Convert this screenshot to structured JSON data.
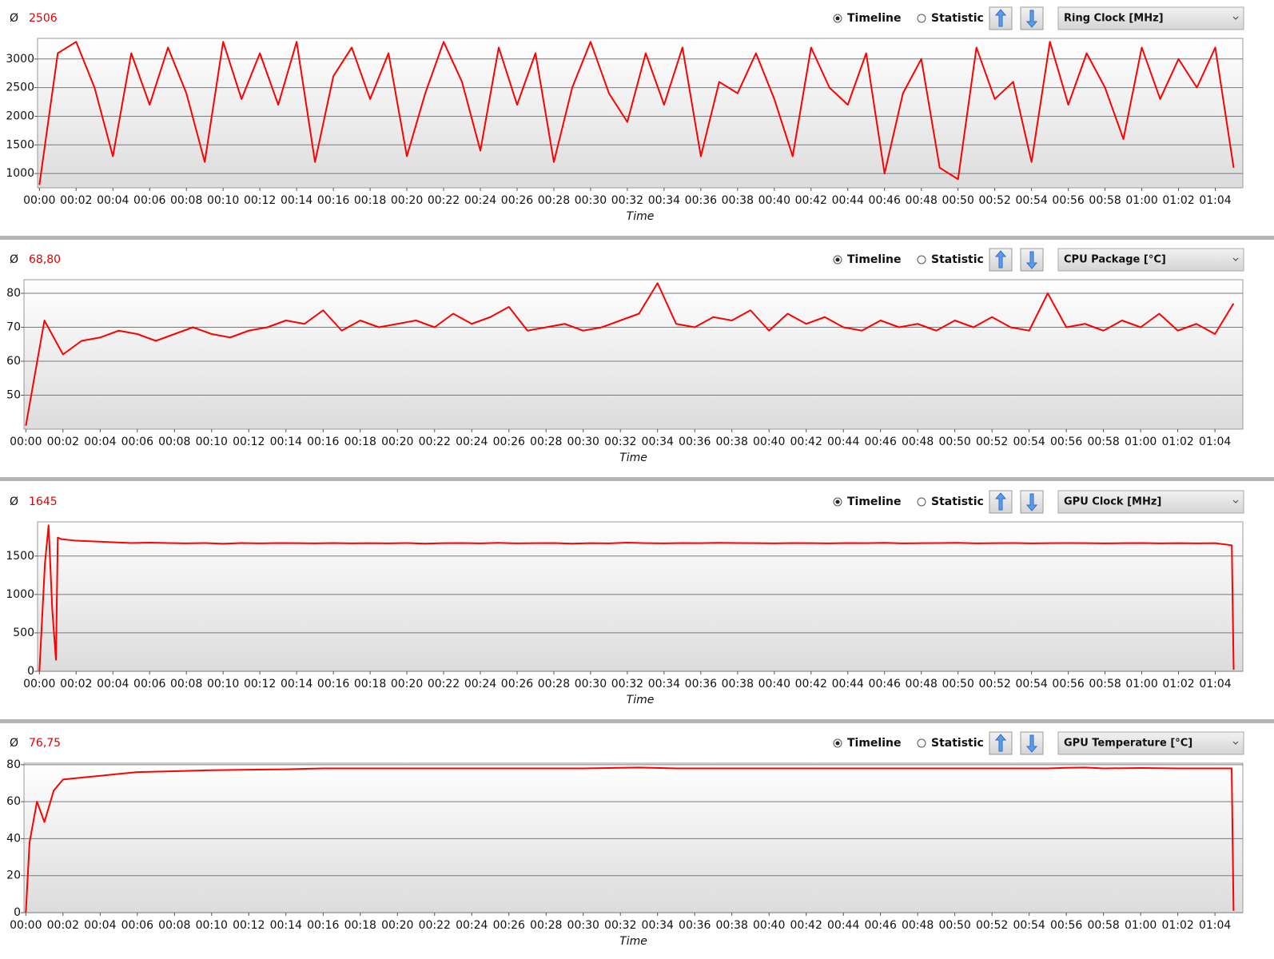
{
  "chart_data": [
    {
      "type": "line",
      "average_symbol": "Ø",
      "average": "2506",
      "view_options": [
        "Timeline",
        "Statistic"
      ],
      "selected_view": "Timeline",
      "x_label": "Time",
      "grid": true,
      "x": [
        0,
        1,
        2,
        3,
        4,
        5,
        6,
        7,
        8,
        9,
        10,
        11,
        12,
        13,
        14,
        15,
        16,
        17,
        18,
        19,
        20,
        21,
        22,
        23,
        24,
        25,
        26,
        27,
        28,
        29,
        30,
        31,
        32,
        33,
        34,
        35,
        36,
        37,
        38,
        39,
        40,
        41,
        42,
        43,
        44,
        45,
        46,
        47,
        48,
        49,
        50,
        51,
        52,
        53,
        54,
        55,
        56,
        57,
        58,
        59,
        60,
        61,
        62,
        63,
        64,
        65
      ],
      "series": [
        {
          "name": "Ring Clock [MHz]",
          "color": "#ff0000",
          "values": [
            800,
            3100,
            3300,
            2500,
            1300,
            3100,
            2200,
            3200,
            2400,
            1200,
            3300,
            2300,
            3100,
            2200,
            3300,
            1200,
            2700,
            3200,
            2300,
            3100,
            1300,
            2400,
            3300,
            2600,
            1400,
            3200,
            2200,
            3100,
            1200,
            2500,
            3300,
            2400,
            1900,
            3100,
            2200,
            3200,
            1300,
            2600,
            2400,
            3100,
            2300,
            1300,
            3200,
            2500,
            2200,
            3100,
            1000,
            2400,
            3000,
            1100,
            900,
            3200,
            2300,
            2600,
            1200,
            3300,
            2200,
            3100,
            2500,
            1600,
            3200,
            2300,
            3000,
            2500,
            3200,
            1100
          ]
        }
      ],
      "xlim": [
        -0.1,
        65.5
      ],
      "ylim": [
        750,
        3360
      ],
      "yticks": [
        1000,
        1500,
        2000,
        2500,
        3000
      ],
      "xticks": [
        {
          "value": 0,
          "label": "00:00"
        },
        {
          "value": 2,
          "label": "00:02"
        },
        {
          "value": 4,
          "label": "00:04"
        },
        {
          "value": 6,
          "label": "00:06"
        },
        {
          "value": 8,
          "label": "00:08"
        },
        {
          "value": 10,
          "label": "00:10"
        },
        {
          "value": 12,
          "label": "00:12"
        },
        {
          "value": 14,
          "label": "00:14"
        },
        {
          "value": 16,
          "label": "00:16"
        },
        {
          "value": 18,
          "label": "00:18"
        },
        {
          "value": 20,
          "label": "00:20"
        },
        {
          "value": 22,
          "label": "00:22"
        },
        {
          "value": 24,
          "label": "00:24"
        },
        {
          "value": 26,
          "label": "00:26"
        },
        {
          "value": 28,
          "label": "00:28"
        },
        {
          "value": 30,
          "label": "00:30"
        },
        {
          "value": 32,
          "label": "00:32"
        },
        {
          "value": 34,
          "label": "00:34"
        },
        {
          "value": 36,
          "label": "00:36"
        },
        {
          "value": 38,
          "label": "00:38"
        },
        {
          "value": 40,
          "label": "00:40"
        },
        {
          "value": 42,
          "label": "00:42"
        },
        {
          "value": 44,
          "label": "00:44"
        },
        {
          "value": 46,
          "label": "00:46"
        },
        {
          "value": 48,
          "label": "00:48"
        },
        {
          "value": 50,
          "label": "00:50"
        },
        {
          "value": 52,
          "label": "00:52"
        },
        {
          "value": 54,
          "label": "00:54"
        },
        {
          "value": 56,
          "label": "00:56"
        },
        {
          "value": 58,
          "label": "00:58"
        },
        {
          "value": 60,
          "label": "01:00"
        },
        {
          "value": 62,
          "label": "01:02"
        },
        {
          "value": 64,
          "label": "01:04"
        }
      ]
    },
    {
      "type": "line",
      "average_symbol": "Ø",
      "average": "68,80",
      "view_options": [
        "Timeline",
        "Statistic"
      ],
      "selected_view": "Timeline",
      "x_label": "Time",
      "grid": true,
      "x": [
        0,
        1,
        2,
        3,
        4,
        5,
        6,
        7,
        8,
        9,
        10,
        11,
        12,
        13,
        14,
        15,
        16,
        17,
        18,
        19,
        20,
        21,
        22,
        23,
        24,
        25,
        26,
        27,
        28,
        29,
        30,
        31,
        32,
        33,
        34,
        35,
        36,
        37,
        38,
        39,
        40,
        41,
        42,
        43,
        44,
        45,
        46,
        47,
        48,
        49,
        50,
        51,
        52,
        53,
        54,
        55,
        56,
        57,
        58,
        59,
        60,
        61,
        62,
        63,
        64,
        65
      ],
      "series": [
        {
          "name": "CPU Package [°C]",
          "color": "#ff0000",
          "values": [
            41,
            72,
            62,
            66,
            67,
            69,
            68,
            66,
            68,
            70,
            68,
            67,
            69,
            70,
            72,
            71,
            75,
            69,
            72,
            70,
            71,
            72,
            70,
            74,
            71,
            73,
            76,
            69,
            70,
            71,
            69,
            70,
            72,
            74,
            83,
            71,
            70,
            73,
            72,
            75,
            69,
            74,
            71,
            73,
            70,
            69,
            72,
            70,
            71,
            69,
            72,
            70,
            73,
            70,
            69,
            80,
            70,
            71,
            69,
            72,
            70,
            74,
            69,
            71,
            68,
            77
          ]
        }
      ],
      "xlim": [
        -0.1,
        65.5
      ],
      "ylim": [
        40,
        84
      ],
      "yticks": [
        50,
        60,
        70,
        80
      ],
      "xticks": [
        {
          "value": 0,
          "label": "00:00"
        },
        {
          "value": 2,
          "label": "00:02"
        },
        {
          "value": 4,
          "label": "00:04"
        },
        {
          "value": 6,
          "label": "00:06"
        },
        {
          "value": 8,
          "label": "00:08"
        },
        {
          "value": 10,
          "label": "00:10"
        },
        {
          "value": 12,
          "label": "00:12"
        },
        {
          "value": 14,
          "label": "00:14"
        },
        {
          "value": 16,
          "label": "00:16"
        },
        {
          "value": 18,
          "label": "00:18"
        },
        {
          "value": 20,
          "label": "00:20"
        },
        {
          "value": 22,
          "label": "00:22"
        },
        {
          "value": 24,
          "label": "00:24"
        },
        {
          "value": 26,
          "label": "00:26"
        },
        {
          "value": 28,
          "label": "00:28"
        },
        {
          "value": 30,
          "label": "00:30"
        },
        {
          "value": 32,
          "label": "00:32"
        },
        {
          "value": 34,
          "label": "00:34"
        },
        {
          "value": 36,
          "label": "00:36"
        },
        {
          "value": 38,
          "label": "00:38"
        },
        {
          "value": 40,
          "label": "00:40"
        },
        {
          "value": 42,
          "label": "00:42"
        },
        {
          "value": 44,
          "label": "00:44"
        },
        {
          "value": 46,
          "label": "00:46"
        },
        {
          "value": 48,
          "label": "00:48"
        },
        {
          "value": 50,
          "label": "00:50"
        },
        {
          "value": 52,
          "label": "00:52"
        },
        {
          "value": 54,
          "label": "00:54"
        },
        {
          "value": 56,
          "label": "00:56"
        },
        {
          "value": 58,
          "label": "00:58"
        },
        {
          "value": 60,
          "label": "01:00"
        },
        {
          "value": 62,
          "label": "01:02"
        },
        {
          "value": 64,
          "label": "01:04"
        }
      ]
    },
    {
      "type": "line",
      "average_symbol": "Ø",
      "average": "1645",
      "view_options": [
        "Timeline",
        "Statistic"
      ],
      "selected_view": "Timeline",
      "x_label": "Time",
      "grid": true,
      "x": [
        0,
        0.3,
        0.5,
        0.7,
        0.9,
        1,
        1.2,
        2,
        3,
        4,
        5,
        6,
        7,
        8,
        9,
        10,
        11,
        12,
        13,
        14,
        15,
        16,
        17,
        18,
        19,
        20,
        21,
        22,
        23,
        24,
        25,
        26,
        27,
        28,
        29,
        30,
        31,
        32,
        33,
        34,
        35,
        36,
        37,
        38,
        39,
        40,
        41,
        42,
        43,
        44,
        45,
        46,
        47,
        48,
        49,
        50,
        51,
        52,
        53,
        54,
        55,
        56,
        57,
        58,
        59,
        60,
        61,
        62,
        63,
        64,
        64.9,
        65
      ],
      "series": [
        {
          "name": "GPU Clock [MHz]",
          "color": "#ff0000",
          "values": [
            0,
            1400,
            1900,
            800,
            150,
            1740,
            1720,
            1700,
            1690,
            1680,
            1670,
            1675,
            1670,
            1665,
            1670,
            1660,
            1670,
            1665,
            1670,
            1668,
            1665,
            1670,
            1665,
            1668,
            1665,
            1670,
            1662,
            1668,
            1670,
            1665,
            1672,
            1665,
            1668,
            1670,
            1662,
            1668,
            1665,
            1675,
            1668,
            1665,
            1670,
            1668,
            1672,
            1670,
            1668,
            1665,
            1670,
            1668,
            1665,
            1670,
            1668,
            1672,
            1665,
            1668,
            1670,
            1672,
            1665,
            1668,
            1670,
            1665,
            1668,
            1670,
            1668,
            1665,
            1668,
            1670,
            1665,
            1668,
            1665,
            1668,
            1640,
            20
          ]
        }
      ],
      "xlim": [
        -0.1,
        65.5
      ],
      "ylim": [
        0,
        1945
      ],
      "yticks": [
        0,
        500,
        1000,
        1500
      ],
      "xticks": [
        {
          "value": 0,
          "label": "00:00"
        },
        {
          "value": 2,
          "label": "00:02"
        },
        {
          "value": 4,
          "label": "00:04"
        },
        {
          "value": 6,
          "label": "00:06"
        },
        {
          "value": 8,
          "label": "00:08"
        },
        {
          "value": 10,
          "label": "00:10"
        },
        {
          "value": 12,
          "label": "00:12"
        },
        {
          "value": 14,
          "label": "00:14"
        },
        {
          "value": 16,
          "label": "00:16"
        },
        {
          "value": 18,
          "label": "00:18"
        },
        {
          "value": 20,
          "label": "00:20"
        },
        {
          "value": 22,
          "label": "00:22"
        },
        {
          "value": 24,
          "label": "00:24"
        },
        {
          "value": 26,
          "label": "00:26"
        },
        {
          "value": 28,
          "label": "00:28"
        },
        {
          "value": 30,
          "label": "00:30"
        },
        {
          "value": 32,
          "label": "00:32"
        },
        {
          "value": 34,
          "label": "00:34"
        },
        {
          "value": 36,
          "label": "00:36"
        },
        {
          "value": 38,
          "label": "00:38"
        },
        {
          "value": 40,
          "label": "00:40"
        },
        {
          "value": 42,
          "label": "00:42"
        },
        {
          "value": 44,
          "label": "00:44"
        },
        {
          "value": 46,
          "label": "00:46"
        },
        {
          "value": 48,
          "label": "00:48"
        },
        {
          "value": 50,
          "label": "00:50"
        },
        {
          "value": 52,
          "label": "00:52"
        },
        {
          "value": 54,
          "label": "00:54"
        },
        {
          "value": 56,
          "label": "00:56"
        },
        {
          "value": 58,
          "label": "00:58"
        },
        {
          "value": 60,
          "label": "01:00"
        },
        {
          "value": 62,
          "label": "01:02"
        },
        {
          "value": 64,
          "label": "01:04"
        }
      ]
    },
    {
      "type": "line",
      "average_symbol": "Ø",
      "average": "76,75",
      "view_options": [
        "Timeline",
        "Statistic"
      ],
      "selected_view": "Timeline",
      "x_label": "Time",
      "grid": true,
      "x": [
        0,
        0.2,
        0.6,
        1,
        1.5,
        2,
        3,
        4,
        5,
        6,
        8,
        10,
        12,
        14,
        16,
        18,
        20,
        25,
        30,
        32,
        33,
        35,
        40,
        45,
        50,
        55,
        56,
        57,
        58,
        60,
        62,
        64,
        64.9,
        65
      ],
      "series": [
        {
          "name": "GPU Temperature [°C]",
          "color": "#ff0000",
          "values": [
            0,
            38,
            60,
            49,
            66,
            72,
            73,
            74,
            75,
            76,
            76.5,
            77,
            77.3,
            77.5,
            78,
            78,
            78,
            78,
            78,
            78.3,
            78.5,
            78,
            78,
            78,
            78,
            78,
            78.3,
            78.5,
            78,
            78.2,
            78,
            78,
            78,
            1
          ]
        }
      ],
      "xlim": [
        -0.1,
        65.5
      ],
      "ylim": [
        0,
        80.8
      ],
      "yticks": [
        0,
        20,
        40,
        60,
        80
      ],
      "xticks": [
        {
          "value": 0,
          "label": "00:00"
        },
        {
          "value": 2,
          "label": "00:02"
        },
        {
          "value": 4,
          "label": "00:04"
        },
        {
          "value": 6,
          "label": "00:06"
        },
        {
          "value": 8,
          "label": "00:08"
        },
        {
          "value": 10,
          "label": "00:10"
        },
        {
          "value": 12,
          "label": "00:12"
        },
        {
          "value": 14,
          "label": "00:14"
        },
        {
          "value": 16,
          "label": "00:16"
        },
        {
          "value": 18,
          "label": "00:18"
        },
        {
          "value": 20,
          "label": "00:20"
        },
        {
          "value": 22,
          "label": "00:22"
        },
        {
          "value": 24,
          "label": "00:24"
        },
        {
          "value": 26,
          "label": "00:26"
        },
        {
          "value": 28,
          "label": "00:28"
        },
        {
          "value": 30,
          "label": "00:30"
        },
        {
          "value": 32,
          "label": "00:32"
        },
        {
          "value": 34,
          "label": "00:34"
        },
        {
          "value": 36,
          "label": "00:36"
        },
        {
          "value": 38,
          "label": "00:38"
        },
        {
          "value": 40,
          "label": "00:40"
        },
        {
          "value": 42,
          "label": "00:42"
        },
        {
          "value": 44,
          "label": "00:44"
        },
        {
          "value": 46,
          "label": "00:46"
        },
        {
          "value": 48,
          "label": "00:48"
        },
        {
          "value": 50,
          "label": "00:50"
        },
        {
          "value": 52,
          "label": "00:52"
        },
        {
          "value": 54,
          "label": "00:54"
        },
        {
          "value": 56,
          "label": "00:56"
        },
        {
          "value": 58,
          "label": "00:58"
        },
        {
          "value": 60,
          "label": "01:00"
        },
        {
          "value": 62,
          "label": "01:02"
        },
        {
          "value": 64,
          "label": "01:04"
        }
      ]
    }
  ]
}
